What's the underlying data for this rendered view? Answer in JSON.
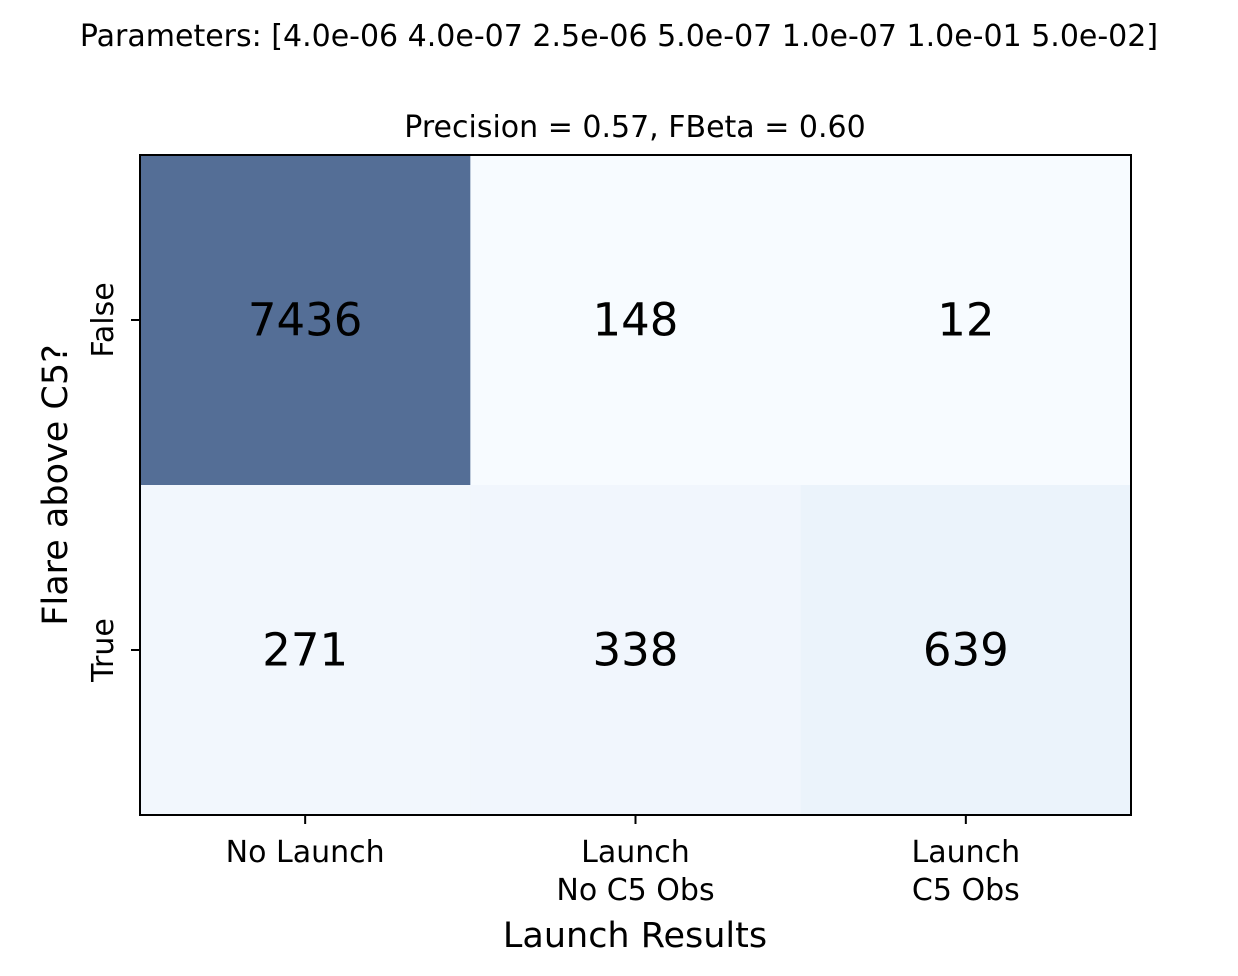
{
  "suptitle": "Parameters: [4.0e-06 4.0e-07 2.5e-06 5.0e-07 1.0e-07 1.0e-01 5.0e-02]",
  "chart_data": {
    "type": "heatmap",
    "title": "Precision = 0.57, FBeta = 0.60",
    "xlabel": "Launch Results",
    "ylabel": "Flare above C5?",
    "x_categories": [
      [
        "No Launch"
      ],
      [
        "Launch",
        "No C5 Obs"
      ],
      [
        "Launch",
        " C5 Obs"
      ]
    ],
    "y_categories": [
      "False",
      "True"
    ],
    "values": [
      [
        7436,
        148,
        12
      ],
      [
        271,
        338,
        639
      ]
    ],
    "colormap": "Blues",
    "alpha": 0.7,
    "grid": false,
    "colorbar": false
  },
  "colors": {
    "cell_false_no_launch": "#546e96",
    "cell_false_launch_no_c5": "#f7fbff",
    "cell_false_launch_c5": "#f7fbff",
    "cell_true_no_launch": "#f2f7fd",
    "cell_true_launch_no_c5": "#f1f6fd",
    "cell_true_launch_c5": "#ebf3fb",
    "text": "#000000",
    "frame": "#000000"
  }
}
